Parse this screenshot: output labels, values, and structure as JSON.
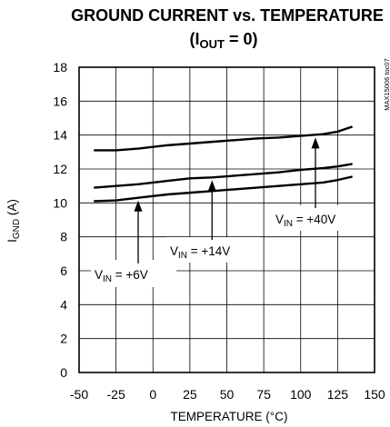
{
  "chart_data": {
    "type": "line",
    "title": "GROUND CURRENT vs. TEMPERATURE",
    "subtitle": {
      "open": "(I",
      "sub": "OUT",
      "rest": " = 0)"
    },
    "xlabel": "TEMPERATURE (°C)",
    "ylabel": {
      "main": "I",
      "sub": "GND",
      "rest": " (A)"
    },
    "side_label": "MAX15006 toc07",
    "xlim": [
      -50,
      150
    ],
    "ylim": [
      0,
      18
    ],
    "x_ticks": [
      -50,
      -25,
      0,
      25,
      50,
      75,
      100,
      125,
      150
    ],
    "y_ticks": [
      0,
      2,
      4,
      6,
      8,
      10,
      12,
      14,
      16,
      18
    ],
    "grid": true,
    "series": [
      {
        "name": "+6V",
        "x": [
          -40,
          -25,
          -10,
          0,
          10,
          25,
          40,
          55,
          70,
          85,
          100,
          115,
          125,
          135
        ],
        "y": [
          10.1,
          10.15,
          10.3,
          10.4,
          10.5,
          10.6,
          10.7,
          10.8,
          10.9,
          11.0,
          11.1,
          11.2,
          11.35,
          11.55
        ]
      },
      {
        "name": "+14V",
        "x": [
          -40,
          -25,
          -10,
          0,
          10,
          25,
          40,
          55,
          70,
          85,
          100,
          115,
          125,
          135
        ],
        "y": [
          10.9,
          11.0,
          11.1,
          11.2,
          11.3,
          11.45,
          11.5,
          11.6,
          11.7,
          11.8,
          11.95,
          12.05,
          12.15,
          12.3
        ]
      },
      {
        "name": "+40V",
        "x": [
          -40,
          -25,
          -10,
          0,
          10,
          25,
          40,
          55,
          70,
          85,
          100,
          115,
          125,
          135
        ],
        "y": [
          13.1,
          13.1,
          13.2,
          13.3,
          13.4,
          13.5,
          13.6,
          13.7,
          13.8,
          13.85,
          13.95,
          14.05,
          14.2,
          14.5
        ]
      }
    ],
    "annotations": [
      {
        "series": "+6V",
        "pre": "V",
        "sub": "IN",
        "text": " = +6V",
        "arrow_x": -10
      },
      {
        "series": "+14V",
        "pre": "V",
        "sub": "IN",
        "text": " = +14V",
        "arrow_x": 40
      },
      {
        "series": "+40V",
        "pre": "V",
        "sub": "IN",
        "text": " = +40V",
        "arrow_x": 110
      }
    ]
  }
}
